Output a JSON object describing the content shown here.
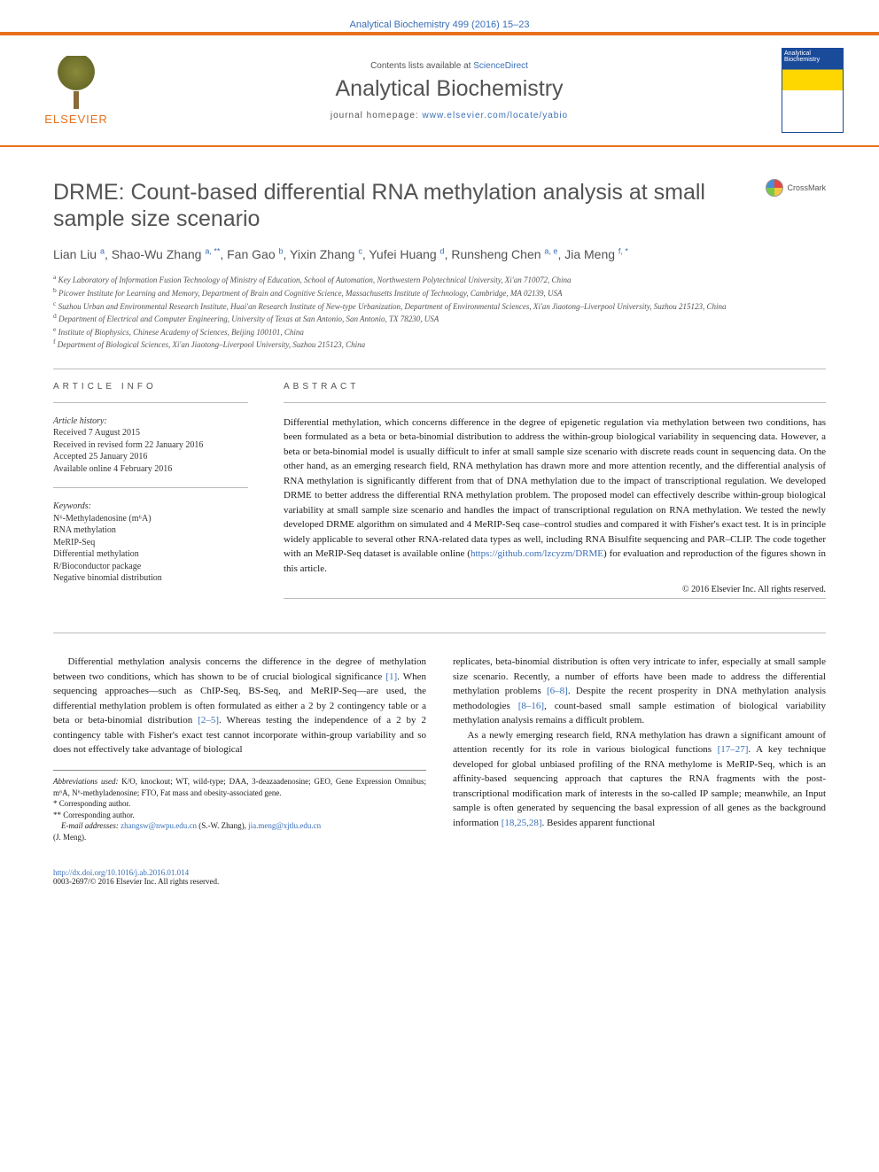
{
  "header": {
    "journal_ref": "Analytical Biochemistry 499 (2016) 15–23",
    "contents_text": "Contents lists available at ",
    "contents_link": "ScienceDirect",
    "journal_name": "Analytical Biochemistry",
    "homepage_label": "journal homepage: ",
    "homepage_url": "www.elsevier.com/locate/yabio",
    "publisher_name": "ELSEVIER",
    "cover_label": "Analytical Biochemistry",
    "crossmark_label": "CrossMark"
  },
  "colors": {
    "accent_orange": "#e8711c",
    "link_blue": "#3a6fb7",
    "heading_gray": "#535353",
    "journal_blue": "#1a4a9a",
    "journal_yellow": "#ffd700"
  },
  "article": {
    "title": "DRME: Count-based differential RNA methylation analysis at small sample size scenario",
    "authors_html": "Lian Liu <sup>a</sup>, Shao-Wu Zhang <sup>a, **</sup>, Fan Gao <sup>b</sup>, Yixin Zhang <sup>c</sup>, Yufei Huang <sup>d</sup>, Runsheng Chen <sup>a, e</sup>, Jia Meng <sup>f, *</sup>",
    "affiliations": [
      {
        "key": "a",
        "text": "Key Laboratory of Information Fusion Technology of Ministry of Education, School of Automation, Northwestern Polytechnical University, Xi'an 710072, China"
      },
      {
        "key": "b",
        "text": "Picower Institute for Learning and Memory, Department of Brain and Cognitive Science, Massachusetts Institute of Technology, Cambridge, MA 02139, USA"
      },
      {
        "key": "c",
        "text": "Suzhou Urban and Environmental Research Institute, Huai'an Research Institute of New-type Urbanization, Department of Environmental Sciences, Xi'an Jiaotong–Liverpool University, Suzhou 215123, China"
      },
      {
        "key": "d",
        "text": "Department of Electrical and Computer Engineering, University of Texas at San Antonio, San Antonio, TX 78230, USA"
      },
      {
        "key": "e",
        "text": "Institute of Biophysics, Chinese Academy of Sciences, Beijing 100101, China"
      },
      {
        "key": "f",
        "text": "Department of Biological Sciences, Xi'an Jiaotong–Liverpool University, Suzhou 215123, China"
      }
    ]
  },
  "info": {
    "head": "ARTICLE INFO",
    "history_title": "Article history:",
    "history": [
      "Received 7 August 2015",
      "Received in revised form 22 January 2016",
      "Accepted 25 January 2016",
      "Available online 4 February 2016"
    ],
    "keywords_title": "Keywords:",
    "keywords": [
      "N⁶-Methyladenosine (m⁶A)",
      "RNA methylation",
      "MeRIP-Seq",
      "Differential methylation",
      "R/Bioconductor package",
      "Negative binomial distribution"
    ]
  },
  "abstract": {
    "head": "ABSTRACT",
    "text": "Differential methylation, which concerns difference in the degree of epigenetic regulation via methylation between two conditions, has been formulated as a beta or beta-binomial distribution to address the within-group biological variability in sequencing data. However, a beta or beta-binomial model is usually difficult to infer at small sample size scenario with discrete reads count in sequencing data. On the other hand, as an emerging research field, RNA methylation has drawn more and more attention recently, and the differential analysis of RNA methylation is significantly different from that of DNA methylation due to the impact of transcriptional regulation. We developed DRME to better address the differential RNA methylation problem. The proposed model can effectively describe within-group biological variability at small sample size scenario and handles the impact of transcriptional regulation on RNA methylation. We tested the newly developed DRME algorithm on simulated and 4 MeRIP-Seq case–control studies and compared it with Fisher's exact test. It is in principle widely applicable to several other RNA-related data types as well, including RNA Bisulfite sequencing and PAR–CLIP. The code together with an MeRIP-Seq dataset is available online (",
    "link": "https://github.com/lzcyzm/DRME",
    "text_tail": ") for evaluation and reproduction of the figures shown in this article.",
    "copyright": "© 2016 Elsevier Inc. All rights reserved."
  },
  "body": {
    "left_p1": "Differential methylation analysis concerns the difference in the degree of methylation between two conditions, which has shown to be of crucial biological significance ",
    "left_ref1": "[1]",
    "left_p1b": ". When sequencing approaches—such as ChIP-Seq, BS-Seq, and MeRIP-Seq—are used, the differential methylation problem is often formulated as either a 2 by 2 contingency table or a beta or beta-binomial distribution ",
    "left_ref2": "[2–5]",
    "left_p1c": ". Whereas testing the independence of a 2 by 2 contingency table with Fisher's exact test cannot incorporate within-group variability and so does not effectively take advantage of biological",
    "right_p1": "replicates, beta-binomial distribution is often very intricate to infer, especially at small sample size scenario. Recently, a number of efforts have been made to address the differential methylation problems ",
    "right_ref1": "[6–8]",
    "right_p1b": ". Despite the recent prosperity in DNA methylation analysis methodologies ",
    "right_ref2": "[8–16]",
    "right_p1c": ", count-based small sample estimation of biological variability methylation analysis remains a difficult problem.",
    "right_p2": "As a newly emerging research field, RNA methylation has drawn a significant amount of attention recently for its role in various biological functions ",
    "right_ref3": "[17–27]",
    "right_p2b": ". A key technique developed for global unbiased profiling of the RNA methylome is MeRIP-Seq, which is an affinity-based sequencing approach that captures the RNA fragments with the post-transcriptional modification mark of interests in the so-called IP sample; meanwhile, an Input sample is often generated by sequencing the basal expression of all genes as the background information ",
    "right_ref4": "[18,25,28]",
    "right_p2c": ". Besides apparent functional"
  },
  "footnotes": {
    "abbrev_label": "Abbreviations used:",
    "abbrev_text": " K/O, knockout; WT, wild-type; DAA, 3-deazaadenosine; GEO, Gene Expression Omnibus; m⁶A, N⁶-methyladenosine; FTO, Fat mass and obesity-associated gene.",
    "corr1": "* Corresponding author.",
    "corr2": "** Corresponding author.",
    "email_label": "E-mail addresses: ",
    "email1": "zhangsw@nwpu.edu.cn",
    "email1_paren": " (S.-W. Zhang), ",
    "email2": "jia.meng@xjtlu.edu.cn",
    "email2_paren": " (J. Meng)."
  },
  "footer": {
    "doi": "http://dx.doi.org/10.1016/j.ab.2016.01.014",
    "issn_line": "0003-2697/© 2016 Elsevier Inc. All rights reserved."
  }
}
